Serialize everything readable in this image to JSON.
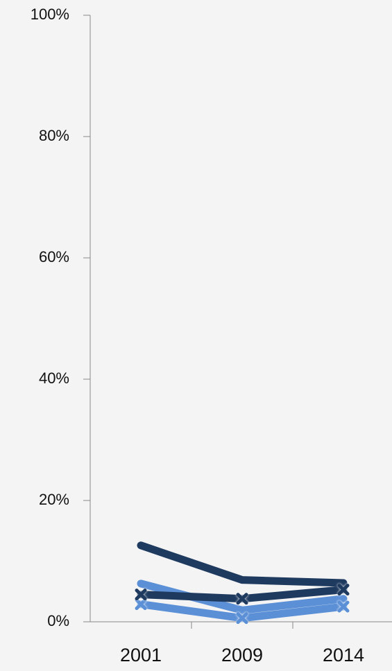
{
  "chart_data": {
    "type": "line",
    "categories": [
      "2001",
      "2009",
      "2014"
    ],
    "series": [
      {
        "color": "#1f3a5f",
        "marker": "none",
        "values": [
          12.6,
          6.9,
          6.4
        ]
      },
      {
        "color": "#5b8fd6",
        "marker": "none",
        "values": [
          6.3,
          1.9,
          3.8
        ]
      },
      {
        "color": "#5b8fd6",
        "marker": "x",
        "values": [
          2.9,
          0.6,
          2.5
        ]
      },
      {
        "color": "#1f3a5f",
        "marker": "x",
        "values": [
          4.5,
          3.8,
          5.3
        ]
      }
    ],
    "ylim": [
      0,
      100
    ],
    "yticks": [
      {
        "value": 0,
        "label": "0%"
      },
      {
        "value": 20,
        "label": "20%"
      },
      {
        "value": 40,
        "label": "40%"
      },
      {
        "value": 60,
        "label": "60%"
      },
      {
        "value": 80,
        "label": "80%"
      },
      {
        "value": 100,
        "label": "100%"
      }
    ],
    "axis_color": "#888888"
  }
}
